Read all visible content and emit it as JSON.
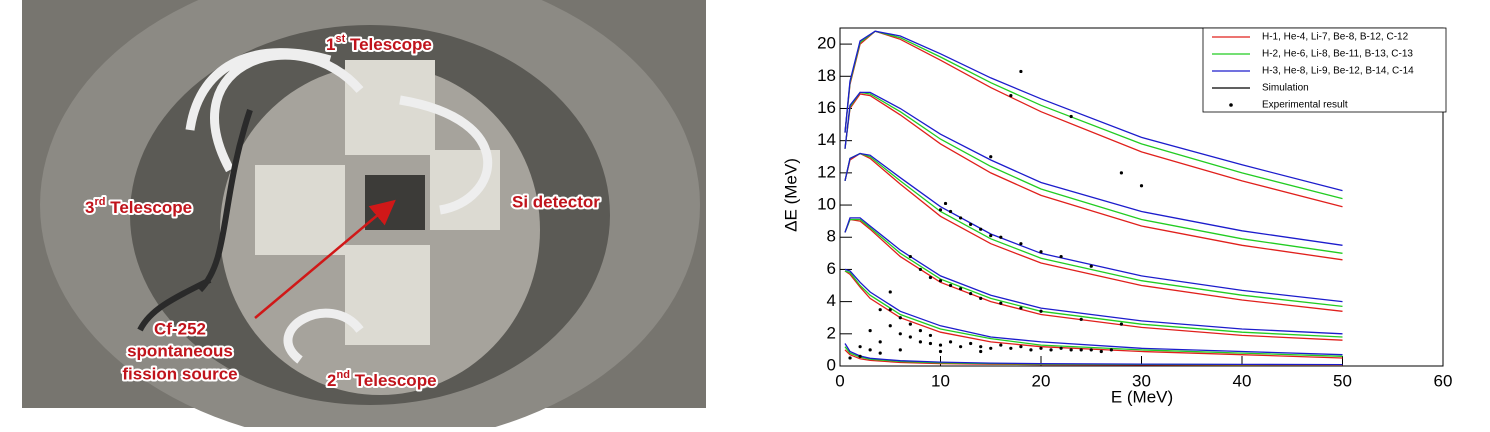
{
  "photo": {
    "labels": {
      "t1": {
        "num": "1",
        "sup": "st",
        "text": " Telescope"
      },
      "t2": {
        "num": "2",
        "sup": "nd",
        "text": " Telescope"
      },
      "t3": {
        "num": "3",
        "sup": "rd",
        "text": " Telescope"
      },
      "si": "Si detector",
      "source": [
        "Cf-252",
        "spontaneous",
        "fission source"
      ]
    }
  },
  "chart_data": {
    "type": "line",
    "xlabel": "E (MeV)",
    "ylabel": "ΔE (MeV)",
    "xlim": [
      0,
      60
    ],
    "xticks": [
      0,
      10,
      20,
      30,
      40,
      50,
      60
    ],
    "ylim": [
      0,
      21
    ],
    "yticks": [
      0,
      2,
      4,
      6,
      8,
      10,
      12,
      14,
      16,
      18,
      20
    ],
    "legend": "upper right",
    "series": [
      {
        "name": "H-1, He-4, Li-7, Be-8, B-12, C-12",
        "color": "#e0201c",
        "curves": [
          {
            "x": [
              0.5,
              1,
              2,
              3.5,
              6,
              10,
              15,
              20,
              30,
              40,
              50
            ],
            "values": [
              14.5,
              17.5,
              20,
              20.8,
              20.3,
              19,
              17.3,
              15.8,
              13.3,
              11.5,
              9.9
            ]
          },
          {
            "x": [
              0.5,
              1,
              2,
              3,
              6,
              10,
              15,
              20,
              30,
              40,
              50
            ],
            "values": [
              13.5,
              16,
              16.9,
              16.8,
              15.6,
              13.8,
              12,
              10.6,
              8.7,
              7.5,
              6.6
            ]
          },
          {
            "x": [
              0.5,
              1,
              2,
              3,
              6,
              10,
              15,
              20,
              30,
              40,
              50
            ],
            "values": [
              11.5,
              12.8,
              13.2,
              12.9,
              11.3,
              9.3,
              7.6,
              6.4,
              5,
              4.1,
              3.4
            ]
          },
          {
            "x": [
              0.5,
              1,
              2,
              3,
              6,
              10,
              15,
              20,
              30,
              40,
              50
            ],
            "values": [
              8.3,
              9.1,
              9,
              8.5,
              6.8,
              5.2,
              4,
              3.2,
              2.4,
              1.9,
              1.6
            ]
          },
          {
            "x": [
              0.5,
              1,
              2,
              3,
              6,
              10,
              15,
              20,
              30,
              40,
              50
            ],
            "values": [
              5.9,
              5.7,
              4.9,
              4.2,
              3,
              2.1,
              1.5,
              1.2,
              0.9,
              0.7,
              0.5
            ]
          },
          {
            "x": [
              0.5,
              1,
              2,
              3,
              6,
              10,
              15,
              20,
              30,
              40,
              50
            ],
            "values": [
              1,
              0.7,
              0.45,
              0.35,
              0.22,
              0.15,
              0.11,
              0.09,
              0.07,
              0.05,
              0.04
            ]
          }
        ]
      },
      {
        "name": "H-2, He-6, Li-8, Be-11, B-13, C-13",
        "color": "#22cc22",
        "curves": [
          {
            "x": [
              0.5,
              1,
              2,
              3.5,
              6,
              10,
              15,
              20,
              30,
              40,
              50
            ],
            "values": [
              14.5,
              17.6,
              20.1,
              20.8,
              20.4,
              19.2,
              17.6,
              16.2,
              13.8,
              12,
              10.4
            ]
          },
          {
            "x": [
              0.5,
              1,
              2,
              3,
              6,
              10,
              15,
              20,
              30,
              40,
              50
            ],
            "values": [
              13.5,
              16.1,
              17,
              16.9,
              15.8,
              14.1,
              12.4,
              11,
              9.1,
              7.9,
              7
            ]
          },
          {
            "x": [
              0.5,
              1,
              2,
              3,
              6,
              10,
              15,
              20,
              30,
              40,
              50
            ],
            "values": [
              11.5,
              12.9,
              13.2,
              13,
              11.5,
              9.6,
              7.9,
              6.7,
              5.3,
              4.4,
              3.7
            ]
          },
          {
            "x": [
              0.5,
              1,
              2,
              3,
              6,
              10,
              15,
              20,
              30,
              40,
              50
            ],
            "values": [
              8.3,
              9.1,
              9.1,
              8.6,
              7,
              5.4,
              4.2,
              3.4,
              2.6,
              2.1,
              1.8
            ]
          },
          {
            "x": [
              0.5,
              1,
              2,
              3,
              6,
              10,
              15,
              20,
              30,
              40,
              50
            ],
            "values": [
              5.9,
              5.8,
              5,
              4.4,
              3.2,
              2.3,
              1.7,
              1.3,
              1,
              0.8,
              0.6
            ]
          },
          {
            "x": [
              0.5,
              1,
              2,
              3,
              6,
              10,
              15,
              20,
              30,
              40,
              50
            ],
            "values": [
              1.2,
              0.8,
              0.55,
              0.42,
              0.28,
              0.2,
              0.15,
              0.12,
              0.1,
              0.08,
              0.07
            ]
          }
        ]
      },
      {
        "name": "H-3, He-8, Li-9, Be-12, B-14, C-14",
        "color": "#1c1ccc",
        "curves": [
          {
            "x": [
              0.5,
              1,
              2,
              3.5,
              6,
              10,
              15,
              20,
              30,
              40,
              50
            ],
            "values": [
              14.5,
              17.7,
              20.2,
              20.8,
              20.5,
              19.4,
              17.9,
              16.6,
              14.2,
              12.5,
              10.9
            ]
          },
          {
            "x": [
              0.5,
              1,
              2,
              3,
              6,
              10,
              15,
              20,
              30,
              40,
              50
            ],
            "values": [
              13.5,
              16.2,
              17,
              17,
              16,
              14.4,
              12.8,
              11.4,
              9.6,
              8.4,
              7.5
            ]
          },
          {
            "x": [
              0.5,
              1,
              2,
              3,
              6,
              10,
              15,
              20,
              30,
              40,
              50
            ],
            "values": [
              11.5,
              12.9,
              13.2,
              13.1,
              11.7,
              9.9,
              8.2,
              7,
              5.6,
              4.7,
              4
            ]
          },
          {
            "x": [
              0.5,
              1,
              2,
              3,
              6,
              10,
              15,
              20,
              30,
              40,
              50
            ],
            "values": [
              8.3,
              9.2,
              9.2,
              8.7,
              7.2,
              5.6,
              4.4,
              3.6,
              2.8,
              2.3,
              2
            ]
          },
          {
            "x": [
              0.5,
              1,
              2,
              3,
              6,
              10,
              15,
              20,
              30,
              40,
              50
            ],
            "values": [
              6,
              5.9,
              5.2,
              4.6,
              3.4,
              2.5,
              1.8,
              1.5,
              1.1,
              0.9,
              0.7
            ]
          },
          {
            "x": [
              0.5,
              1,
              2,
              3,
              6,
              10,
              15,
              20,
              30,
              40,
              50
            ],
            "values": [
              1.4,
              0.9,
              0.62,
              0.48,
              0.33,
              0.24,
              0.18,
              0.15,
              0.12,
              0.1,
              0.09
            ]
          }
        ]
      },
      {
        "name": "Simulation",
        "color": "#000000",
        "curves": []
      }
    ],
    "scatter": {
      "name": "Experimental result",
      "color": "#000000",
      "x": [
        1,
        2,
        3,
        4,
        5,
        3,
        4,
        5,
        5,
        6,
        6,
        7,
        7,
        8,
        8,
        9,
        9,
        10,
        11,
        12,
        13,
        14,
        15,
        16,
        17,
        18,
        19,
        20,
        21,
        22,
        23,
        24,
        25,
        26,
        27,
        2,
        4,
        6,
        10,
        14,
        7,
        8,
        9,
        10,
        11,
        12,
        13,
        14,
        16,
        18,
        20,
        24,
        28,
        10,
        10.5,
        11,
        12,
        13,
        14,
        15,
        16,
        18,
        20,
        22,
        25,
        18,
        17,
        23,
        15,
        28,
        30
      ],
      "values": [
        0.5,
        1.2,
        2.2,
        3.5,
        4.6,
        1,
        1.5,
        2.5,
        3.5,
        2,
        3,
        1.8,
        2.6,
        1.5,
        2.2,
        1.4,
        1.9,
        1.3,
        1.5,
        1.2,
        1.4,
        1.2,
        1.1,
        1.3,
        1.1,
        1.2,
        1,
        1.1,
        1,
        1.1,
        1,
        1,
        1,
        0.9,
        1,
        0.6,
        0.8,
        1,
        0.9,
        0.9,
        6.8,
        6,
        5.5,
        5.3,
        5,
        4.8,
        4.5,
        4.2,
        3.9,
        3.6,
        3.4,
        2.9,
        2.6,
        9.7,
        10.1,
        9.6,
        9.2,
        8.8,
        8.5,
        8.1,
        8,
        7.6,
        7.1,
        6.8,
        6.2,
        18.3,
        16.8,
        15.5,
        13,
        12,
        11.2
      ]
    }
  }
}
